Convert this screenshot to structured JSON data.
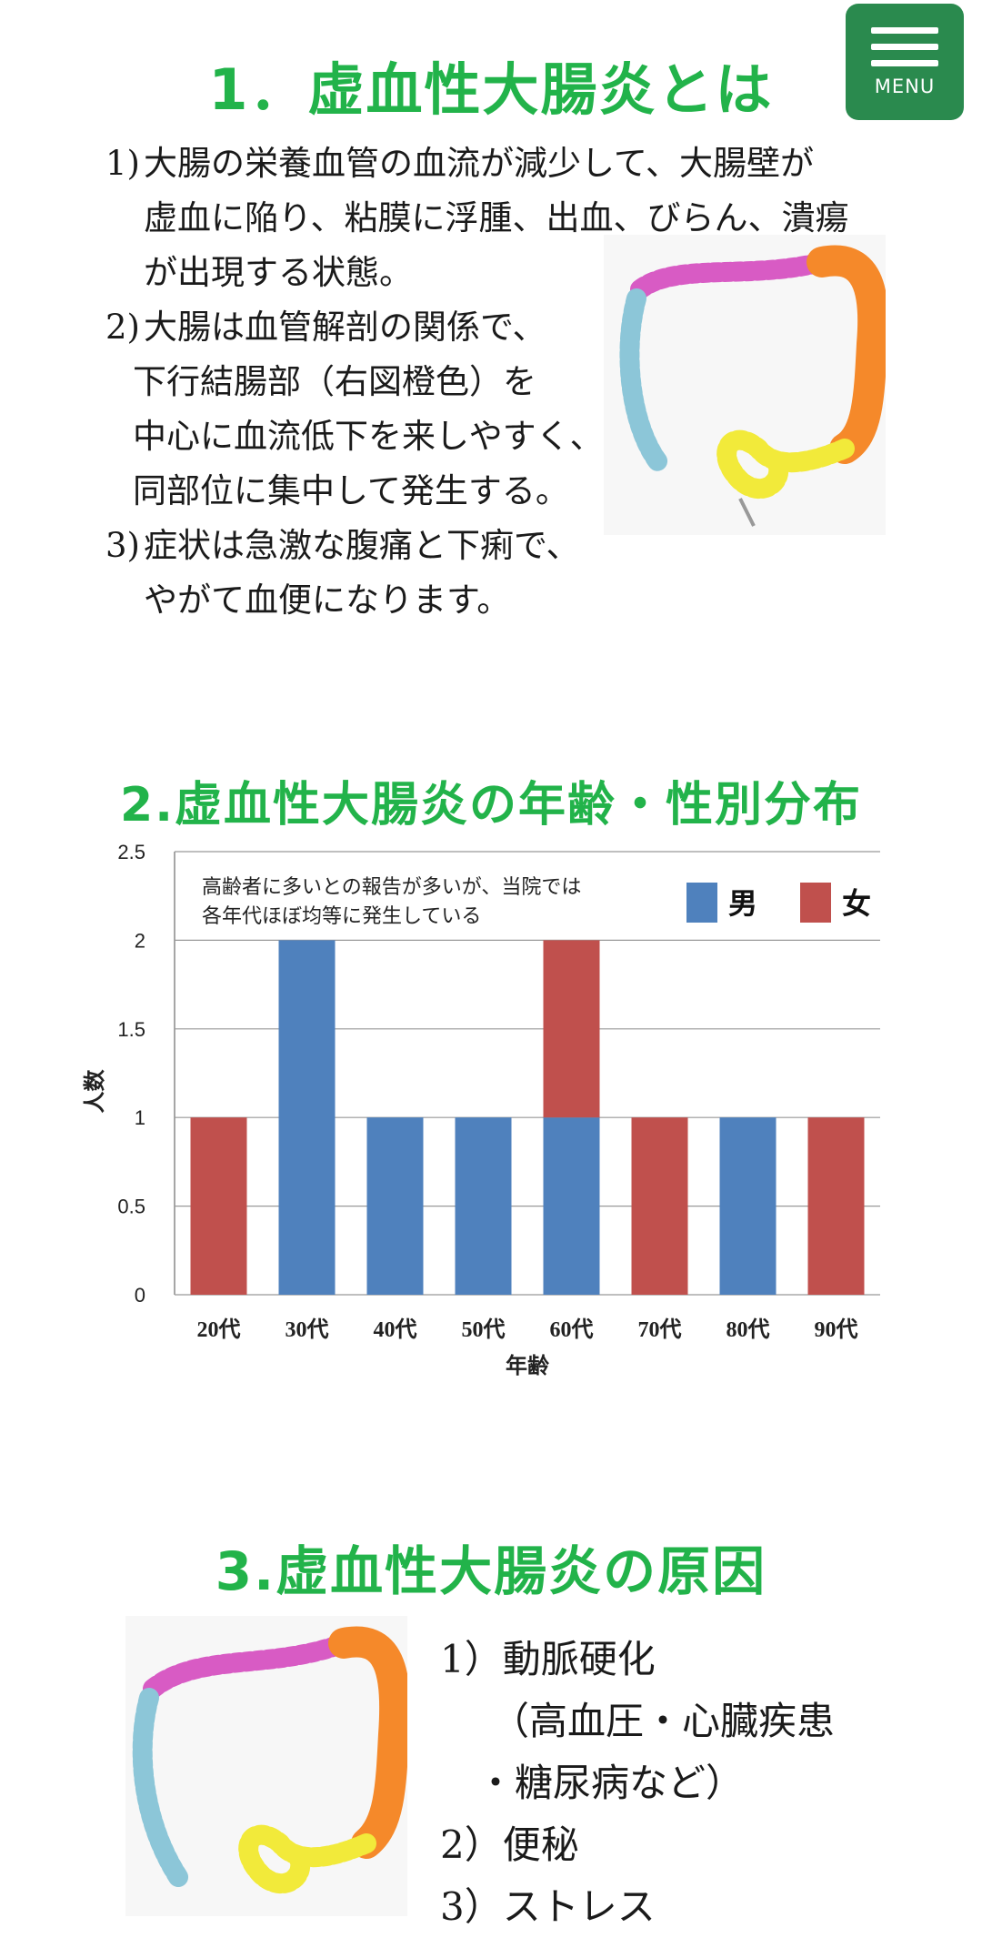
{
  "menu": {
    "label": "MENU"
  },
  "section1": {
    "title": "1．虚血性大腸炎とは",
    "items": [
      {
        "num": "1)",
        "lines": [
          "大腸の栄養血管の血流が減少して、大腸壁が",
          "虚血に陥り、粘膜に浮腫、出血、びらん、潰瘍",
          "が出現する状態。"
        ]
      },
      {
        "num": "2)",
        "lines": [
          "大腸は血管解剖の関係で、",
          "下行結腸部（右図橙色）を",
          "中心に血流低下を来しやすく、",
          "同部位に集中して発生する。"
        ]
      },
      {
        "num": "3)",
        "lines": [
          "症状は急激な腹痛と下痢で、",
          "やがて血便になります。"
        ]
      }
    ]
  },
  "section2": {
    "title": "2.虚血性大腸炎の年齢・性別分布"
  },
  "chart_data": {
    "type": "bar",
    "stacked": true,
    "categories": [
      "20代",
      "30代",
      "40代",
      "50代",
      "60代",
      "70代",
      "80代",
      "90代"
    ],
    "series": [
      {
        "name": "男",
        "color": "#4f81bd",
        "values": [
          0,
          2,
          1,
          1,
          1,
          0,
          1,
          0
        ]
      },
      {
        "name": "女",
        "color": "#c0504d",
        "values": [
          1,
          0,
          0,
          0,
          1,
          1,
          0,
          1
        ]
      }
    ],
    "xlabel": "年齢",
    "ylabel": "人数",
    "ylim": [
      0,
      2.5
    ],
    "yticks": [
      "0",
      "0.5",
      "1",
      "1.5",
      "2",
      "2.5"
    ],
    "grid": true,
    "legend": "top-right",
    "annotation": [
      "高齢者に多いとの報告が多いが、当院では",
      "各年代ほぼ均等に発生している"
    ]
  },
  "section3": {
    "title": "3.虚血性大腸炎の原因",
    "items": [
      "1）動脈硬化",
      "（高血圧・心臓疾患",
      "・糖尿病など）",
      "2）便秘",
      "3）ストレス"
    ]
  },
  "colors": {
    "heading": "#22b34a",
    "menu_bg": "#2a8a4e",
    "colon_highlight": "#f5892a"
  },
  "icons": {
    "menu": "hamburger-icon",
    "illustration": "colon-illustration"
  }
}
